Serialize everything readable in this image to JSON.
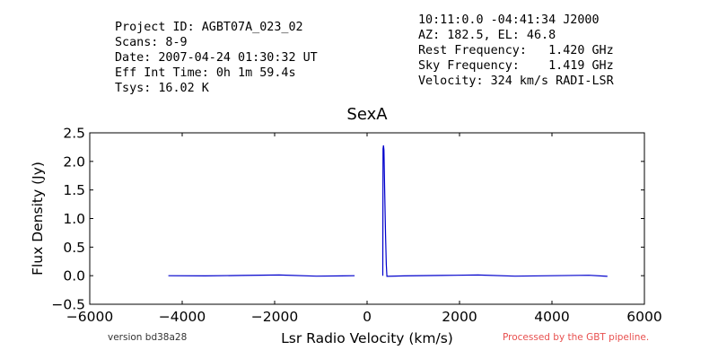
{
  "header": {
    "left_lines": [
      "Project ID: AGBT07A_023_02",
      "Scans: 8-9",
      "Date: 2007-04-24 01:30:32 UT",
      "Eff Int Time: 0h 1m 59.4s",
      "Tsys: 16.02 K"
    ],
    "right_lines": [
      "10:11:0.0 -04:41:34 J2000",
      "AZ: 182.5, EL: 46.8",
      "Rest Frequency:   1.420 GHz",
      "Sky Frequency:    1.419 GHz",
      "Velocity: 324 km/s RADI-LSR"
    ]
  },
  "footer": {
    "version_text": "version bd38a28",
    "processed_text": "Processed by the GBT pipeline.",
    "processed_color": "#e8504f"
  },
  "chart_data": {
    "type": "line",
    "title": "SexA",
    "xlabel": "Lsr Radio Velocity (km/s)",
    "ylabel": "Flux Density (Jy)",
    "xlim": [
      -6000,
      6000
    ],
    "ylim": [
      -0.5,
      2.5
    ],
    "x_ticks": [
      -6000,
      -4000,
      -2000,
      0,
      2000,
      4000,
      6000
    ],
    "x_tick_labels": [
      "−6000",
      "−4000",
      "−2000",
      "0",
      "2000",
      "4000",
      "6000"
    ],
    "y_ticks": [
      -0.5,
      0.0,
      0.5,
      1.0,
      1.5,
      2.0,
      2.5
    ],
    "y_tick_labels": [
      "−0.5",
      "0.0",
      "0.5",
      "1.0",
      "1.5",
      "2.0",
      "2.5"
    ],
    "grid": false,
    "line_color": "#0000cc",
    "series": [
      {
        "segments": [
          [
            [
              -4300,
              0.0
            ],
            [
              -3500,
              0.0
            ],
            [
              -2700,
              0.0
            ],
            [
              -1900,
              0.0
            ],
            [
              -1100,
              0.0
            ],
            [
              -270,
              0.0
            ]
          ],
          [
            [
              340,
              0.0
            ],
            [
              345,
              2.22
            ],
            [
              355,
              2.28
            ],
            [
              365,
              2.2
            ],
            [
              380,
              1.5
            ],
            [
              400,
              0.7
            ],
            [
              415,
              0.2
            ],
            [
              430,
              0.0
            ],
            [
              800,
              0.0
            ],
            [
              1600,
              0.0
            ],
            [
              2400,
              0.0
            ],
            [
              3200,
              0.0
            ],
            [
              4000,
              0.0
            ],
            [
              4800,
              0.0
            ],
            [
              5200,
              0.0
            ]
          ]
        ]
      }
    ]
  }
}
